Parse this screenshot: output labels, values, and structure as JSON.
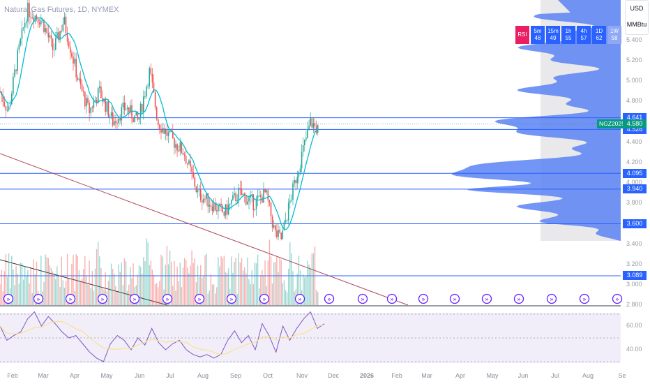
{
  "header": {
    "title": "Natural Gas Futures, 1D, NYMEX",
    "currency": "USD",
    "unit": "MMBtu",
    "symbol": "NGZ2025"
  },
  "rsi_tiles": [
    {
      "label": "RSI"
    },
    {
      "tf": "5m",
      "v": "48"
    },
    {
      "tf": "15m",
      "v": "49"
    },
    {
      "tf": "1h",
      "v": "55"
    },
    {
      "tf": "4h",
      "v": "57"
    },
    {
      "tf": "1D",
      "v": "62"
    },
    {
      "tf": "1W",
      "v": "58"
    }
  ],
  "colors": {
    "up": "#26a69a",
    "down": "#ef5350",
    "level": "#2962ff",
    "ma": "#00bcd4",
    "rsi": "#7e57c2",
    "rsi_ma": "#fbe28c",
    "last": "#089981"
  },
  "chart_data": {
    "type": "candlestick",
    "price_ticks": [
      "5.400",
      "5.200",
      "5.000",
      "4.800",
      "4.400",
      "4.200",
      "4.000",
      "3.800",
      "3.400",
      "3.200",
      "3.000",
      "2.800"
    ],
    "ylim": [
      2.8,
      5.4
    ],
    "levels": [
      {
        "price": 4.641,
        "label": "4.641"
      },
      {
        "price": 4.526,
        "label": "4.526"
      },
      {
        "price": 4.095,
        "label": "4.095"
      },
      {
        "price": 3.94,
        "label": "3.940"
      },
      {
        "price": 3.6,
        "label": "3.600"
      },
      {
        "price": 3.089,
        "label": "3.089"
      }
    ],
    "last_price": {
      "price": 4.58,
      "label": "4.580"
    },
    "x_ticks": [
      "Feb",
      "Mar",
      "Apr",
      "May",
      "Jun",
      "Jul",
      "Aug",
      "Sep",
      "Oct",
      "Nov",
      "Dec",
      "2026",
      "Feb",
      "Mar",
      "Apr",
      "May",
      "Jun",
      "Jul",
      "Aug",
      "Se"
    ],
    "price_path": [
      [
        "2025-01-20",
        4.9
      ],
      [
        "2025-01-28",
        4.7
      ],
      [
        "2025-02-05",
        5.2
      ],
      [
        "2025-02-15",
        5.7
      ],
      [
        "2025-03-01",
        5.6
      ],
      [
        "2025-03-12",
        5.3
      ],
      [
        "2025-03-22",
        5.6
      ],
      [
        "2025-04-05",
        5.0
      ],
      [
        "2025-04-15",
        4.7
      ],
      [
        "2025-04-25",
        4.9
      ],
      [
        "2025-05-08",
        4.6
      ],
      [
        "2025-05-20",
        4.75
      ],
      [
        "2025-06-01",
        4.6
      ],
      [
        "2025-06-12",
        5.1
      ],
      [
        "2025-06-20",
        4.6
      ],
      [
        "2025-07-01",
        4.45
      ],
      [
        "2025-07-15",
        4.3
      ],
      [
        "2025-07-28",
        3.9
      ],
      [
        "2025-08-10",
        3.8
      ],
      [
        "2025-08-22",
        3.7
      ],
      [
        "2025-09-05",
        3.9
      ],
      [
        "2025-09-20",
        3.8
      ],
      [
        "2025-10-01",
        3.9
      ],
      [
        "2025-10-10",
        3.5
      ],
      [
        "2025-10-16",
        3.45
      ],
      [
        "2025-10-25",
        3.85
      ],
      [
        "2025-11-05",
        4.3
      ],
      [
        "2025-11-13",
        4.6
      ],
      [
        "2025-11-20",
        4.52
      ]
    ],
    "rsi": {
      "ticks": [
        "60.00",
        "40.00"
      ],
      "bands": [
        70,
        50,
        30
      ],
      "values": [
        60,
        48,
        52,
        55,
        66,
        72,
        60,
        68,
        62,
        55,
        50,
        52,
        45,
        38,
        33,
        30,
        45,
        52,
        48,
        40,
        50,
        44,
        58,
        46,
        40,
        45,
        48,
        40,
        36,
        34,
        36,
        33,
        36,
        48,
        56,
        46,
        52,
        40,
        62,
        52,
        38,
        60,
        48,
        58,
        66,
        72,
        58,
        62
      ]
    }
  }
}
